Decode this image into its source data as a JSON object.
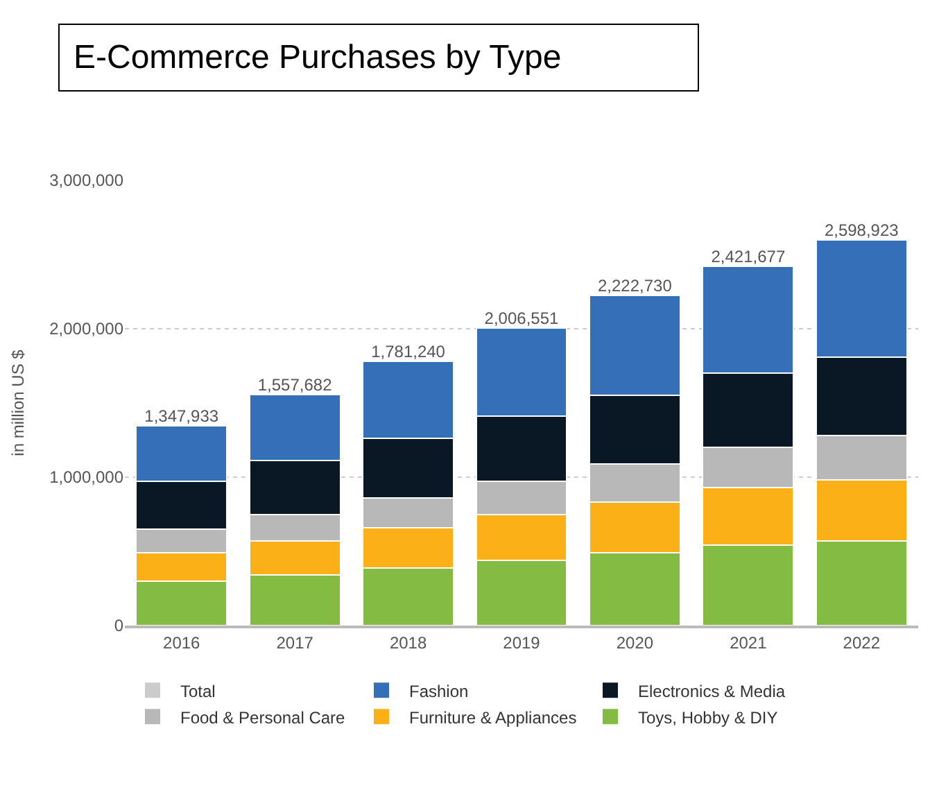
{
  "chart_data": {
    "type": "bar",
    "stacked": true,
    "title": "E-Commerce Purchases by Type",
    "ylabel": "in million US $",
    "categories": [
      "2016",
      "2017",
      "2018",
      "2019",
      "2020",
      "2021",
      "2022"
    ],
    "series": [
      {
        "name": "Toys, Hobby & DIY",
        "color": "#84bb42",
        "values": [
          300000,
          340000,
          390000,
          440000,
          490000,
          540000,
          570000
        ]
      },
      {
        "name": "Furniture & Appliances",
        "color": "#fbb018",
        "values": [
          190000,
          230000,
          270000,
          310000,
          340000,
          390000,
          410000
        ]
      },
      {
        "name": "Food & Personal Care",
        "color": "#b8b8b8",
        "values": [
          160000,
          180000,
          200000,
          220000,
          260000,
          270000,
          300000
        ]
      },
      {
        "name": "Electronics & Media",
        "color": "#0a1826",
        "values": [
          320000,
          360000,
          400000,
          440000,
          460000,
          500000,
          530000
        ]
      },
      {
        "name": "Fashion",
        "color": "#356fb7",
        "values": [
          377933,
          447682,
          521240,
          596551,
          672730,
          721677,
          788923
        ]
      },
      {
        "name": "Total",
        "color": "#cccccc",
        "values": [
          null,
          null,
          null,
          null,
          null,
          null,
          null
        ]
      }
    ],
    "totals": [
      "1,347,933",
      "1,557,682",
      "1,781,240",
      "2,006,551",
      "2,222,730",
      "2,421,677",
      "2,598,923"
    ],
    "ylim": [
      0,
      3000000
    ],
    "yticks": [
      {
        "value": 0,
        "label": "0"
      },
      {
        "value": 1000000,
        "label": "1,000,000"
      },
      {
        "value": 2000000,
        "label": "2,000,000"
      },
      {
        "value": 3000000,
        "label": "3,000,000"
      }
    ],
    "grid": "y",
    "legend": "bottom"
  }
}
